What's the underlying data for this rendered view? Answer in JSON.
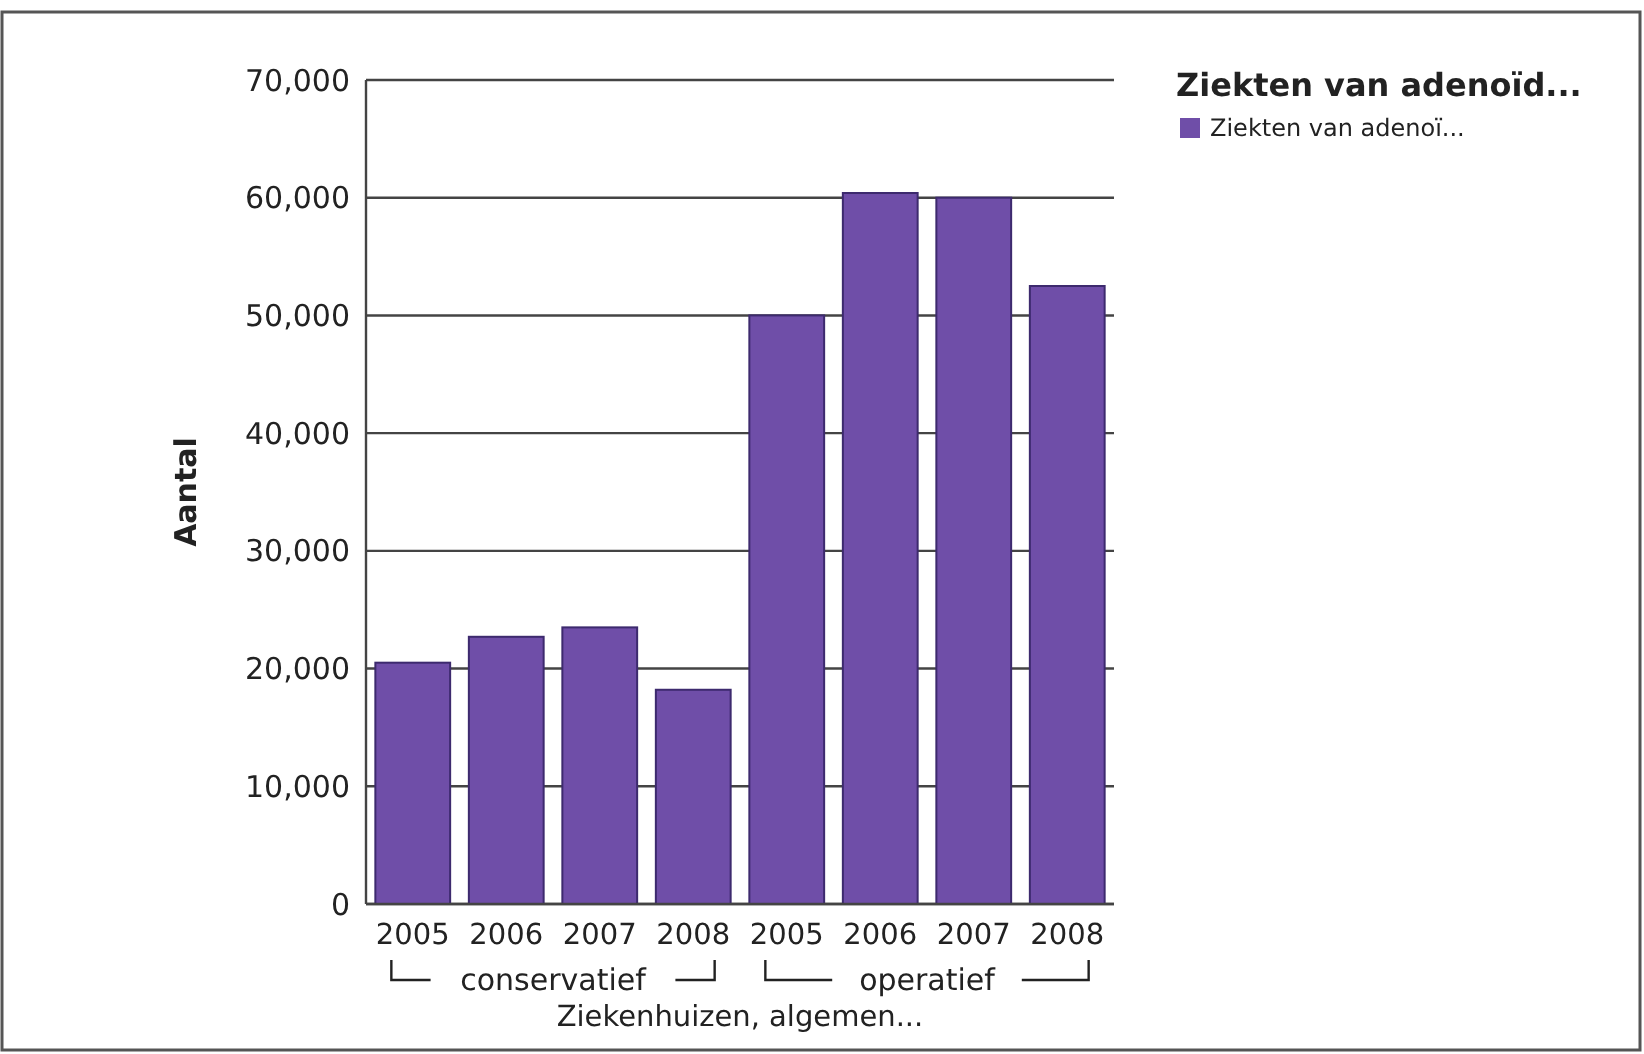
{
  "chart_data": {
    "type": "bar",
    "categories": [
      "2005",
      "2006",
      "2007",
      "2008",
      "2005",
      "2006",
      "2007",
      "2008"
    ],
    "series": [
      {
        "name": "Ziekten van adenoï...",
        "color": "#6f4ea8",
        "values": [
          20500,
          22700,
          23500,
          18200,
          50000,
          60400,
          60000,
          52500
        ]
      }
    ],
    "ylabel": "Aantal",
    "xlabel": "Ziekenhuizen, algemen...",
    "legend_title": "Ziekten van adenoïd...",
    "annotations": [
      "conservatief",
      "operatief"
    ],
    "ylim": [
      0,
      70000
    ],
    "yticks": [
      {
        "value": 0,
        "label": "0"
      },
      {
        "value": 10000,
        "label": "10,000"
      },
      {
        "value": 20000,
        "label": "20,000"
      },
      {
        "value": 30000,
        "label": "30,000"
      },
      {
        "value": 40000,
        "label": "40,000"
      },
      {
        "value": 50000,
        "label": "50,000"
      },
      {
        "value": 60000,
        "label": "60,000"
      },
      {
        "value": 70000,
        "label": "70,000"
      }
    ],
    "grid": "y",
    "legend": "top right"
  }
}
